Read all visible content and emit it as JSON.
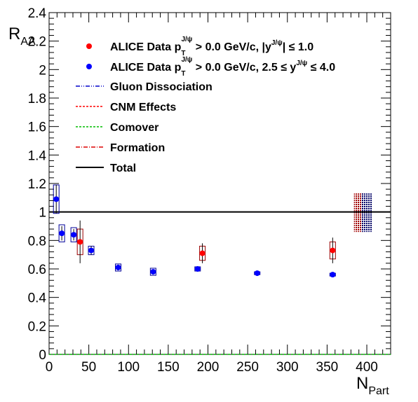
{
  "chart_data": {
    "type": "scatter",
    "x_label_main": "N",
    "x_label_sub": "Part",
    "y_label_main": "R",
    "y_label_sub": "AA",
    "xlim": [
      0,
      430
    ],
    "ylim": [
      0,
      2.4
    ],
    "x_ticks": [
      0,
      50,
      100,
      150,
      200,
      250,
      300,
      350,
      400
    ],
    "x_tick_labels": [
      "0",
      "50",
      "100",
      "150",
      "200",
      "250",
      "300",
      "350",
      "400"
    ],
    "y_ticks": [
      0,
      0.2,
      0.4,
      0.6,
      0.8,
      1,
      1.2,
      1.4,
      1.6,
      1.8,
      2,
      2.2,
      2.4
    ],
    "y_tick_labels": [
      "0",
      "0.2",
      "0.4",
      "0.6",
      "0.8",
      "1",
      "1.2",
      "1.4",
      "1.6",
      "1.8",
      "2",
      "2.2",
      "2.4"
    ],
    "grid": false,
    "legend_position": "top-left",
    "series": [
      {
        "key": "mid",
        "color": "#ff0000",
        "legend_main": "ALICE Data p",
        "legend_sub": "T",
        "legend_sup": "J/ψ",
        "legend_rest": " > 0.0 GeV/c, |y",
        "legend_rest_sup": "J/ψ",
        "legend_tail": "| ≤ 1.0",
        "points": [
          {
            "x": 39,
            "y": 0.79,
            "err": 0.15,
            "sys": 0.09
          },
          {
            "x": 193,
            "y": 0.71,
            "err": 0.07,
            "sys": 0.05
          },
          {
            "x": 357,
            "y": 0.73,
            "err": 0.09,
            "sys": 0.06
          }
        ]
      },
      {
        "key": "fwd",
        "color": "#0000ff",
        "legend_main": "ALICE Data p",
        "legend_sub": "T",
        "legend_sup": "J/ψ",
        "legend_rest": " > 0.0 GeV/c, 2.5 ≤ y",
        "legend_rest_sup": "J/ψ",
        "legend_tail": " ≤ 4.0",
        "points": [
          {
            "x": 9,
            "y": 1.09,
            "err": 0.1,
            "sys": 0.1
          },
          {
            "x": 16,
            "y": 0.85,
            "err": 0.05,
            "sys": 0.06
          },
          {
            "x": 31,
            "y": 0.84,
            "err": 0.04,
            "sys": 0.05
          },
          {
            "x": 53,
            "y": 0.73,
            "err": 0.03,
            "sys": 0.03
          },
          {
            "x": 87,
            "y": 0.61,
            "err": 0.02,
            "sys": 0.025
          },
          {
            "x": 131,
            "y": 0.58,
            "err": 0.015,
            "sys": 0.025
          },
          {
            "x": 187,
            "y": 0.6,
            "err": 0.015,
            "sys": 0.015
          },
          {
            "x": 262,
            "y": 0.57,
            "err": 0.01,
            "sys": 0.01
          },
          {
            "x": 357,
            "y": 0.56,
            "err": 0.01,
            "sys": 0.01
          }
        ]
      }
    ],
    "curves": [
      {
        "key": "gluon",
        "label": "Gluon Dissociation",
        "color": "#0000cc",
        "dash": "6 2 1 2 1 2",
        "points": []
      },
      {
        "key": "cnm",
        "label": "CNM Effects",
        "color": "#ff0000",
        "dash": "3 2",
        "points": []
      },
      {
        "key": "comover",
        "label": "Comover",
        "color": "#00bb00",
        "dash": "3 2",
        "points": [
          [
            0,
            0.0
          ],
          [
            430,
            0.0
          ]
        ]
      },
      {
        "key": "formation",
        "label": "Formation",
        "color": "#dd0000",
        "dash": "6 2 1 2",
        "points": []
      },
      {
        "key": "total",
        "label": "Total",
        "color": "#000000",
        "dash": "",
        "points": []
      }
    ],
    "reference_line": {
      "y": 1.0,
      "color": "#000000"
    },
    "global_boxes": [
      {
        "x": 390,
        "ylo": 0.86,
        "yhi": 1.13,
        "color": "#a00000"
      },
      {
        "x": 400,
        "ylo": 0.86,
        "yhi": 1.13,
        "color": "#000066"
      }
    ]
  }
}
